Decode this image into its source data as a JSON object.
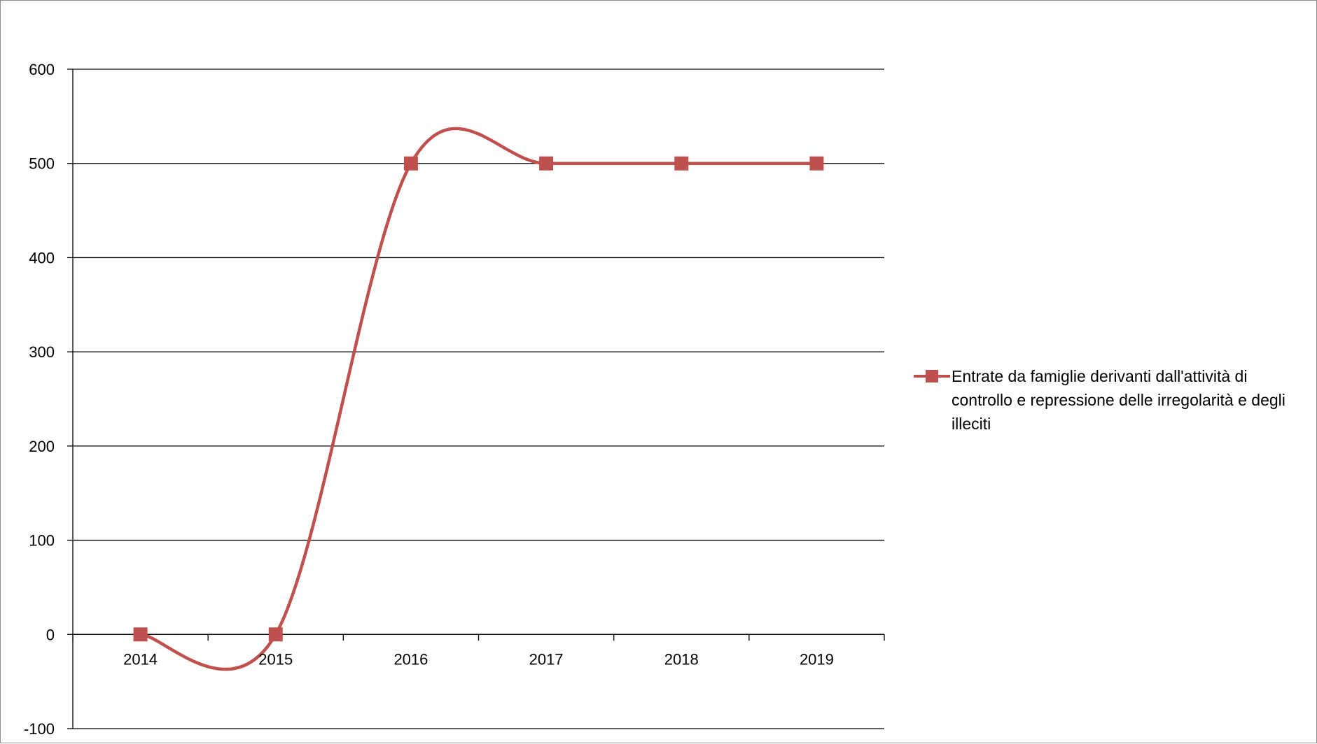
{
  "chart_data": {
    "type": "line",
    "title": "",
    "xlabel": "",
    "ylabel": "",
    "categories": [
      "2014",
      "2015",
      "2016",
      "2017",
      "2018",
      "2019"
    ],
    "series": [
      {
        "name": "Entrate da famiglie derivanti dall'attività di controllo e repressione delle irregolarità e degli illeciti",
        "values": [
          0,
          0,
          500,
          500,
          500,
          500
        ],
        "color": "#c0504d",
        "marker": "square",
        "smoothed": true
      }
    ],
    "ylim": [
      -100,
      600
    ],
    "yticks": [
      "-100",
      "0",
      "100",
      "200",
      "300",
      "400",
      "500",
      "600"
    ],
    "grid": true,
    "legend_position": "right"
  }
}
